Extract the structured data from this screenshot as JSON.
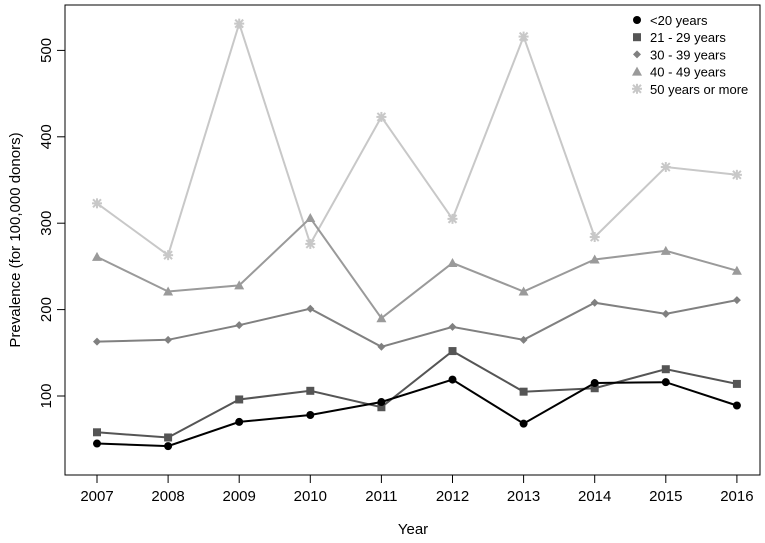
{
  "chart_data": {
    "type": "line",
    "xlabel": "Year",
    "ylabel": "Prevalence (for 100,000 donors)",
    "x": [
      2007,
      2008,
      2009,
      2010,
      2011,
      2012,
      2013,
      2014,
      2015,
      2016
    ],
    "x_ticks": [
      "2007",
      "2008",
      "2009",
      "2010",
      "2011",
      "2012",
      "2013",
      "2014",
      "2015",
      "2016"
    ],
    "y_ticks": [
      "100",
      "200",
      "300",
      "400",
      "500"
    ],
    "ylim": [
      0,
      535
    ],
    "grid": false,
    "legend_position": "top-right",
    "series": [
      {
        "name": "<20 years",
        "color": "#000000",
        "marker": "circle",
        "values": [
          45,
          42,
          70,
          78,
          93,
          119,
          68,
          115,
          116,
          89
        ]
      },
      {
        "name": "21 - 29 years",
        "color": "#555555",
        "marker": "square",
        "values": [
          58,
          52,
          96,
          106,
          87,
          152,
          105,
          109,
          131,
          114
        ]
      },
      {
        "name": "30 - 39 years",
        "color": "#808080",
        "marker": "diamond",
        "values": [
          163,
          165,
          182,
          201,
          157,
          180,
          165,
          208,
          195,
          211
        ]
      },
      {
        "name": "40 - 49 years",
        "color": "#9a9a9a",
        "marker": "triangle",
        "values": [
          261,
          221,
          228,
          306,
          190,
          254,
          221,
          258,
          268,
          245
        ]
      },
      {
        "name": "50 years or more",
        "color": "#c8c8c8",
        "marker": "asterisk",
        "values": [
          323,
          263,
          531,
          276,
          423,
          305,
          516,
          284,
          365,
          356
        ]
      }
    ]
  }
}
